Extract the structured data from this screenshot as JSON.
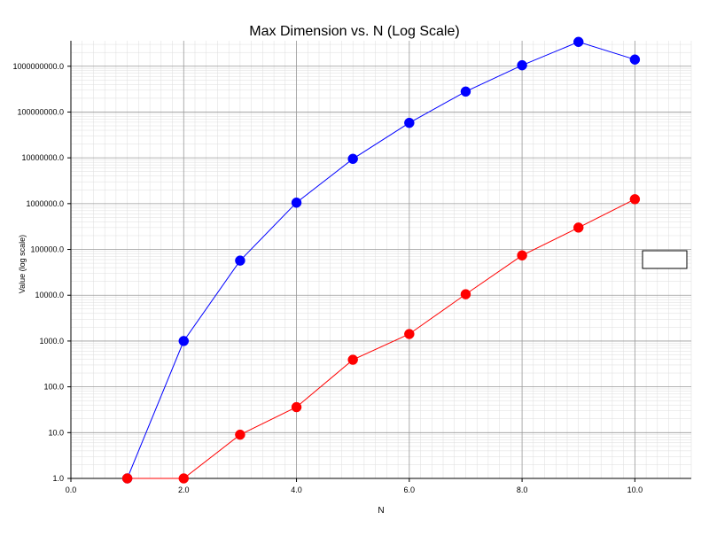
{
  "chart_data": {
    "type": "line",
    "title": "Max Dimension vs. N (Log Scale)",
    "xlabel": "N",
    "ylabel": "Value (log scale)",
    "xlim": [
      0,
      11
    ],
    "ylim": [
      1,
      3600000000
    ],
    "yscale": "log",
    "grid": true,
    "legend": "right (empty box)",
    "xticks": [
      "0.0",
      "2.0",
      "4.0",
      "6.0",
      "8.0",
      "10.0"
    ],
    "yticks": [
      "1.0",
      "10.0",
      "100.0",
      "1000.0",
      "10000.0",
      "100000.0",
      "1000000.0",
      "10000000.0",
      "100000000.0",
      "1000000000.0"
    ],
    "series": [
      {
        "color": "#0000ff",
        "x": [
          1,
          2,
          3,
          4,
          5,
          6,
          7,
          8,
          9,
          10
        ],
        "values": [
          1,
          1000,
          57000,
          1050000,
          9500000,
          58000000,
          280000000,
          1050000000,
          3400000000,
          1400000000
        ]
      },
      {
        "color": "#ff0000",
        "x": [
          1,
          2,
          3,
          4,
          5,
          6,
          7,
          8,
          9,
          10
        ],
        "values": [
          1,
          1,
          9,
          36,
          390,
          1420,
          10500,
          74000,
          300000,
          1250000
        ]
      }
    ]
  }
}
